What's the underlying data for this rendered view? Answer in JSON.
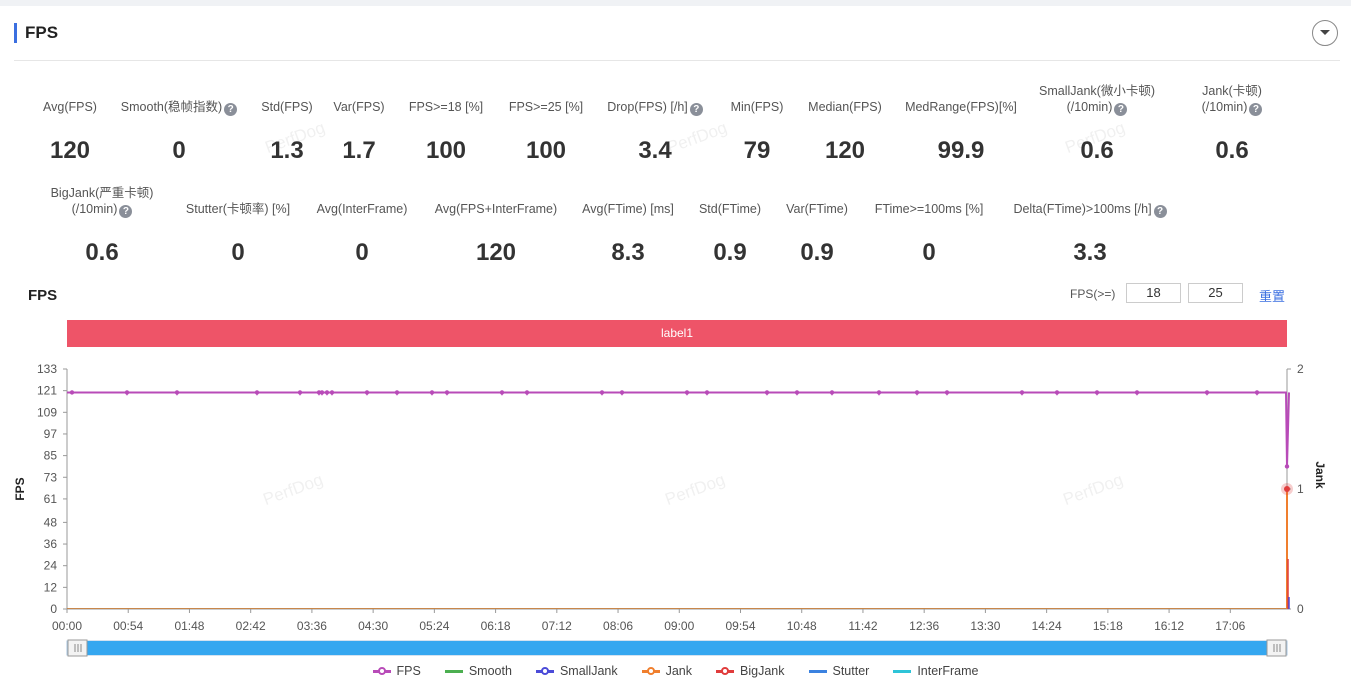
{
  "header": {
    "title": "FPS"
  },
  "metrics_row1": [
    {
      "label": "Avg(FPS)",
      "value": "120",
      "help": false
    },
    {
      "label": "Smooth(稳帧指数)",
      "value": "0",
      "help": true
    },
    {
      "label": "Std(FPS)",
      "value": "1.3",
      "help": false
    },
    {
      "label": "Var(FPS)",
      "value": "1.7",
      "help": false
    },
    {
      "label": "FPS>=18 [%]",
      "value": "100",
      "help": false
    },
    {
      "label": "FPS>=25 [%]",
      "value": "100",
      "help": false
    },
    {
      "label": "Drop(FPS) [/h]",
      "value": "3.4",
      "help": true
    },
    {
      "label": "Min(FPS)",
      "value": "79",
      "help": false
    },
    {
      "label": "Median(FPS)",
      "value": "120",
      "help": false
    },
    {
      "label": "MedRange(FPS)[%]",
      "value": "99.9",
      "help": false
    },
    {
      "label": "SmallJank(微小卡顿)",
      "label2": "(/10min)",
      "value": "0.6",
      "help": true
    },
    {
      "label": "Jank(卡顿)",
      "label2": "(/10min)",
      "value": "0.6",
      "help": true
    }
  ],
  "metrics_row2": [
    {
      "label": "BigJank(严重卡顿)",
      "label2": "(/10min)",
      "value": "0.6",
      "help": true
    },
    {
      "label": "Stutter(卡顿率) [%]",
      "value": "0",
      "help": false
    },
    {
      "label": "Avg(InterFrame)",
      "value": "0",
      "help": false
    },
    {
      "label": "Avg(FPS+InterFrame)",
      "value": "120",
      "help": false
    },
    {
      "label": "Avg(FTime) [ms]",
      "value": "8.3",
      "help": false
    },
    {
      "label": "Std(FTime)",
      "value": "0.9",
      "help": false
    },
    {
      "label": "Var(FTime)",
      "value": "0.9",
      "help": false
    },
    {
      "label": "FTime>=100ms [%]",
      "value": "0",
      "help": false
    },
    {
      "label": "Delta(FTime)>100ms [/h]",
      "value": "3.3",
      "help": true
    }
  ],
  "chart": {
    "title": "FPS",
    "threshold_label": "FPS(>=)",
    "threshold1": "18",
    "threshold2": "25",
    "reset_label": "重置",
    "segment_label": "label1",
    "watermark": "PerfDog"
  },
  "chart_data": {
    "type": "line",
    "y_left_label": "FPS",
    "y_right_label": "Jank",
    "y_left_ticks": [
      "133",
      "121",
      "109",
      "97",
      "85",
      "73",
      "61",
      "48",
      "36",
      "24",
      "12",
      "0"
    ],
    "y_right_ticks": [
      "2",
      "1",
      "0"
    ],
    "ylim_left": [
      0,
      133
    ],
    "ylim_right": [
      0,
      2
    ],
    "x_ticks": [
      "00:00",
      "00:54",
      "01:48",
      "02:42",
      "03:36",
      "04:30",
      "05:24",
      "06:18",
      "07:12",
      "08:06",
      "09:00",
      "09:54",
      "10:48",
      "11:42",
      "12:36",
      "13:30",
      "14:24",
      "15:18",
      "16:12",
      "17:06"
    ],
    "series": [
      {
        "name": "FPS",
        "color": "#b84bb8",
        "baseline": 120,
        "dips": [
          {
            "t": "17:56",
            "value": 79
          }
        ]
      },
      {
        "name": "Smooth",
        "color": "#4caf50",
        "values_constant": 0
      },
      {
        "name": "SmallJank",
        "color": "#4b4bd8",
        "events": [
          {
            "t": "17:56",
            "value": 1
          }
        ]
      },
      {
        "name": "Jank",
        "color": "#f07f2e",
        "events": [
          {
            "t": "17:56",
            "value": 1
          }
        ]
      },
      {
        "name": "BigJank",
        "color": "#e03c3c",
        "events": [
          {
            "t": "17:56",
            "value": 1
          }
        ]
      },
      {
        "name": "Stutter",
        "color": "#3b82e0",
        "values_constant": 0
      },
      {
        "name": "InterFrame",
        "color": "#2ec4d8",
        "values_constant": 0
      }
    ]
  }
}
